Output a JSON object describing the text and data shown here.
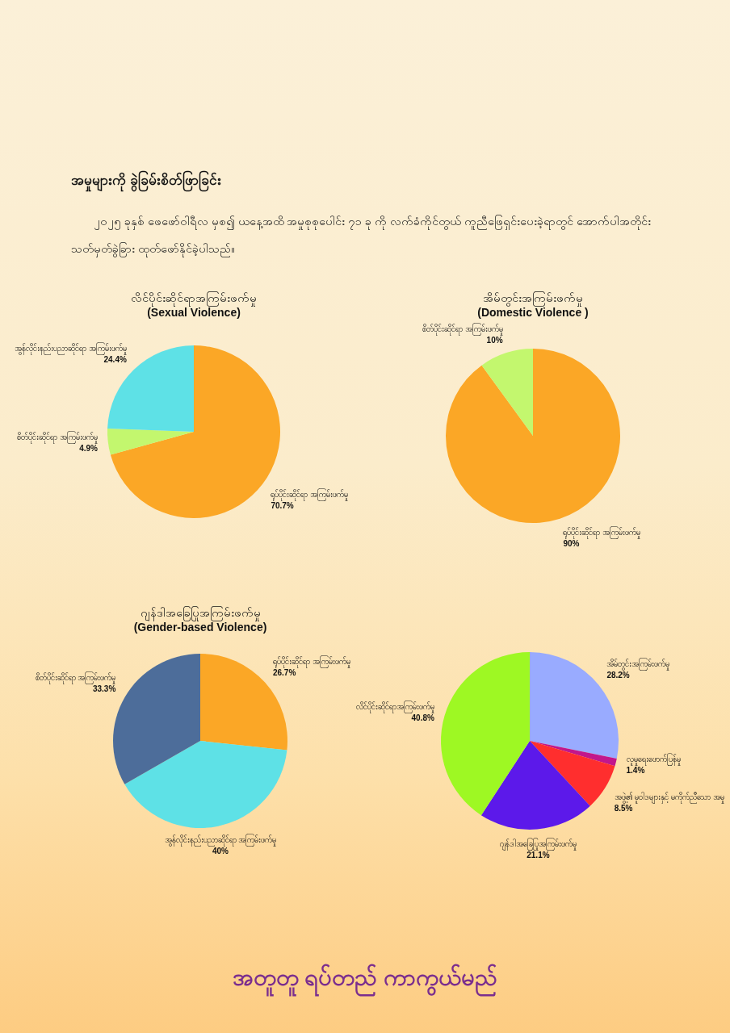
{
  "chart_data": [
    {
      "type": "other",
      "title": "အမှုများကို ခွဲခြမ်းစိတ်ဖြာခြင်း",
      "annotations": [
        "၂၀၂၅ ခုနှစ် ဖေဖော်ဝါရီလ မှစ၍ ယနေ့အထိ အမှုစုစုပေါင်း ၇၁ ခု ကို လက်ခံကိုင်တွယ် ကူညီဖြေရှင်းပေးခဲ့ရာတွင် အောက်ပါအတိုင်း သတ်မှတ်ခွဲခြား ထုတ်ဖော်နိုင်ခဲ့ပါသည်။"
      ]
    },
    {
      "type": "pie",
      "title": "လိင်ပိုင်းဆိုင်ရာအကြမ်းဖက်မှု",
      "subtitle": "(Sexual Violence)",
      "categories": [
        "ရုပ်ပိုင်းဆိုင်ရာ အကြမ်းဖက်မှု",
        "စိတ်ပိုင်းဆိုင်ရာ အကြမ်းဖက်မှု",
        "အွန်လိုင်းနည်းပညာဆိုင်ရာ အကြမ်းဖက်မှု"
      ],
      "values": [
        70.7,
        4.9,
        24.4
      ],
      "value_labels": [
        "70.7%",
        "4.9%",
        "24.4%"
      ],
      "colors": [
        "#fba726",
        "#c3f76e",
        "#5ee1e6"
      ],
      "legend": false
    },
    {
      "type": "pie",
      "title": "အိမ်တွင်းအကြမ်းဖက်မှု",
      "subtitle": "(Domestic Violence )",
      "categories": [
        "ရုပ်ပိုင်းဆိုင်ရာ အကြမ်းဖက်မှု",
        "စိတ်ပိုင်းဆိုင်ရာ အကြမ်းဖက်မှု"
      ],
      "values": [
        90,
        10
      ],
      "value_labels": [
        "90%",
        "10%"
      ],
      "colors": [
        "#fba726",
        "#c3f76e"
      ],
      "legend": false
    },
    {
      "type": "pie",
      "title": "ဂျန်ဒါအခြေပြုအကြမ်းဖက်မှု",
      "subtitle": "(Gender-based Violence)",
      "categories": [
        "ရုပ်ပိုင်းဆိုင်ရာ အကြမ်းဖက်မှု",
        "အွန်လိုင်းနည်းပညာဆိုင်ရာ အကြမ်းဖက်မှု",
        "စိတ်ပိုင်းဆိုင်ရာ အကြမ်းဖက်မှု"
      ],
      "values": [
        26.7,
        40,
        33.3
      ],
      "value_labels": [
        "26.7%",
        "40%",
        "33.3%"
      ],
      "colors": [
        "#fba726",
        "#5ee1e6",
        "#4d6d9a"
      ],
      "legend": false
    },
    {
      "type": "pie",
      "categories": [
        "အိမ်တွင်းအကြမ်းဖက်မှု",
        "လူမှုရေးဖောက်ပြန်မှု",
        "အဖွဲ့၏ မူဝါဒများနှင့် မကိုက်ညီသော အမှု",
        "ဂျန်ဒါအခြေပြုအကြမ်းဖက်မှု",
        "လိင်ပိုင်းဆိုင်ရာအကြမ်းဖက်မှု"
      ],
      "values": [
        28.2,
        1.4,
        8.5,
        21.1,
        40.8
      ],
      "value_labels": [
        "28.2%",
        "1.4%",
        "8.5%",
        "21.1%",
        "40.8%"
      ],
      "colors": [
        "#99abff",
        "#c2168c",
        "#ff2e2e",
        "#5c19ea",
        "#9ef823"
      ],
      "legend": false
    },
    {
      "type": "other",
      "title": "အတူတူ ရပ်တည် ကာကွယ်မည်"
    }
  ]
}
